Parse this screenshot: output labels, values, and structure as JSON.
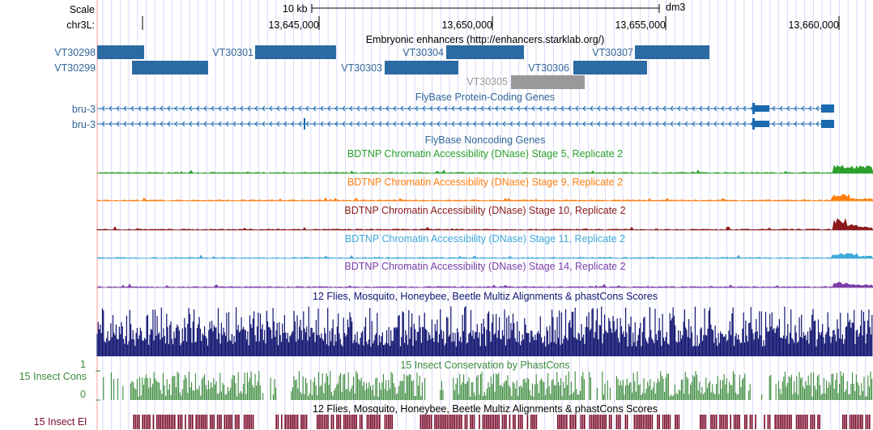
{
  "ruler": {
    "scale_label": "Scale",
    "chrom_label": "chr3L:",
    "scale_bar_label": "10 kb",
    "assembly": "dm3",
    "positions": [
      "13,645,000",
      "13,650,000",
      "13,655,000",
      "13,660,000"
    ]
  },
  "tracks": {
    "enhancers": {
      "title": "Embryonic enhancers (http://enhancers.starklab.org/)",
      "items": [
        "VT30298",
        "VT30299",
        "VT30301",
        "VT30303",
        "VT30304",
        "VT30305",
        "VT30306",
        "VT30307"
      ]
    },
    "protein_coding": {
      "title": "FlyBase Protein-Coding Genes",
      "genes": [
        "bru-3",
        "bru-3"
      ]
    },
    "noncoding": {
      "title": "FlyBase Noncoding Genes"
    },
    "dnase": [
      {
        "title": "BDTNP Chromatin Accessibility (DNase) Stage 5, Replicate 2",
        "color": "#2ca02c"
      },
      {
        "title": "BDTNP Chromatin Accessibility (DNase) Stage 9, Replicate 2",
        "color": "#ff7f0e"
      },
      {
        "title": "BDTNP Chromatin Accessibility (DNase) Stage 10, Replicate 2",
        "color": "#8b1a1a"
      },
      {
        "title": "BDTNP Chromatin Accessibility (DNase) Stage 11, Replicate 2",
        "color": "#3fa9d9"
      },
      {
        "title": "BDTNP Chromatin Accessibility (DNase) Stage 14, Replicate 2",
        "color": "#7b3fa6"
      }
    ],
    "multiz": {
      "title": "12 Flies, Mosquito, Honeybee, Beetle Multiz Alignments & phastCons Scores",
      "color": "#101470"
    },
    "conservation": {
      "title": "15 Insect Conservation by PhastCons",
      "side_label": "15 Insect Cons",
      "max_label": "1",
      "min_label": "0",
      "color": "#3a8a3a"
    },
    "elements": {
      "title": "12 Flies, Mosquito, Honeybee, Beetle Multiz Alignments & phastCons Scores",
      "side_label": "15 Insect El",
      "color": "#7a0a2a"
    }
  },
  "colors": {
    "gene": "#1a6ab0",
    "enhancer": "#2c6aa3",
    "enhancer_gray": "#999999",
    "gridline": "#d8d8f8",
    "left_edge": "#ff9999"
  }
}
